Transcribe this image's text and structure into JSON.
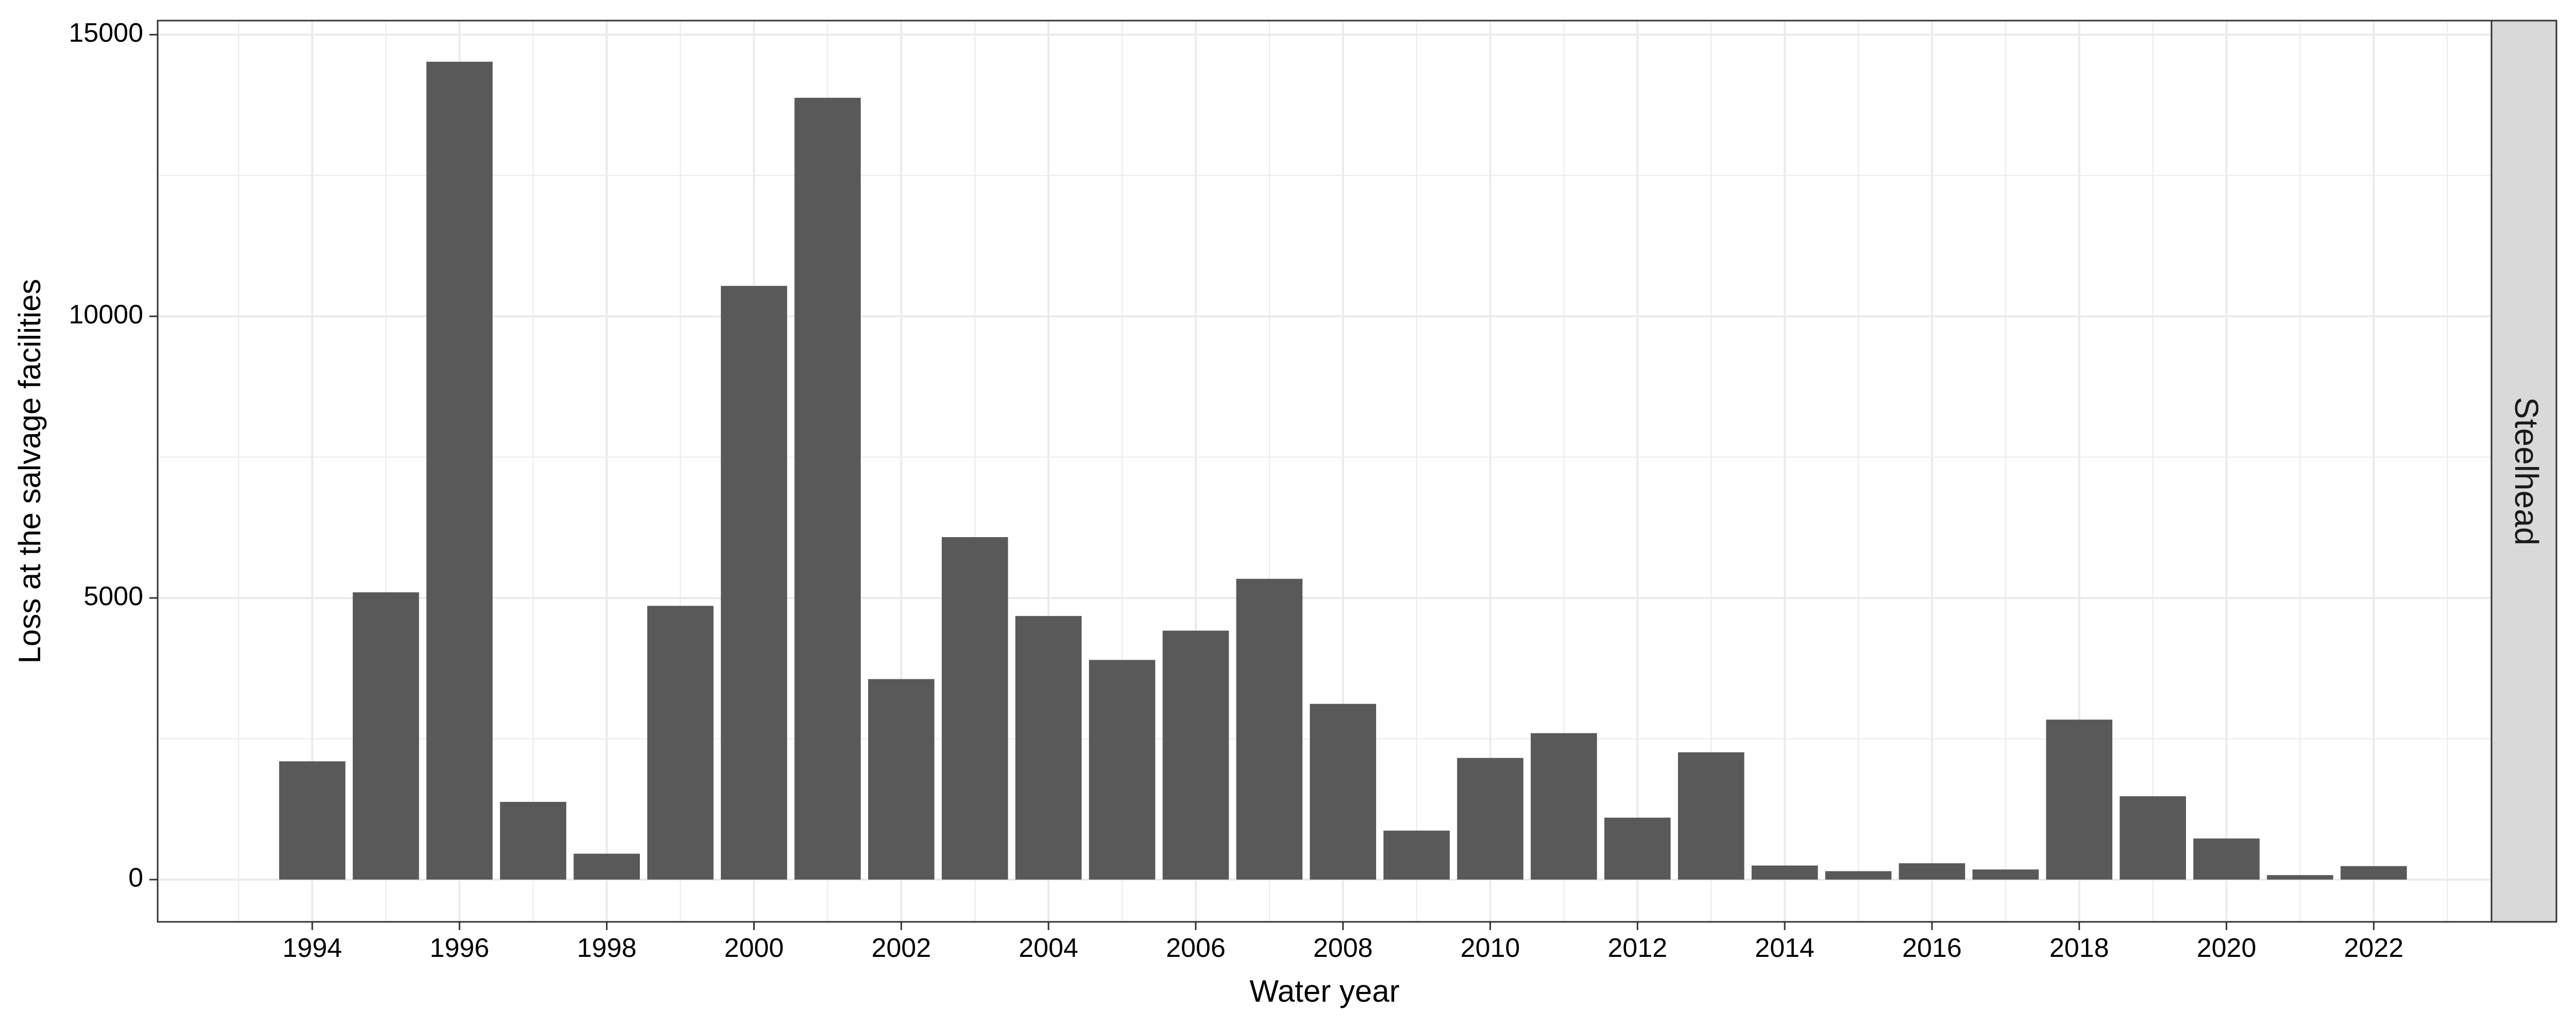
{
  "chart_data": {
    "type": "bar",
    "title": "",
    "xlabel": "Water year",
    "ylabel": "Loss at the salvage facilities",
    "facet_label": "Steelhead",
    "x": [
      1994,
      1995,
      1996,
      1997,
      1998,
      1999,
      2000,
      2001,
      2002,
      2003,
      2004,
      2005,
      2006,
      2007,
      2008,
      2009,
      2010,
      2011,
      2012,
      2013,
      2014,
      2015,
      2016,
      2017,
      2018,
      2019,
      2020,
      2021,
      2022
    ],
    "values": [
      2100,
      5100,
      14520,
      1380,
      460,
      4860,
      10540,
      13880,
      3560,
      6080,
      4680,
      3900,
      4420,
      5340,
      3120,
      870,
      2160,
      2600,
      1100,
      2260,
      250,
      150,
      290,
      180,
      2840,
      1480,
      730,
      80,
      240
    ],
    "x_ticks": [
      "1994",
      "1996",
      "1998",
      "2000",
      "2002",
      "2004",
      "2006",
      "2008",
      "2010",
      "2012",
      "2014",
      "2016",
      "2018",
      "2020",
      "2022"
    ],
    "y_ticks": [
      "0",
      "5000",
      "10000",
      "15000"
    ],
    "xlim": [
      1991.9,
      2023.6
    ],
    "ylim": [
      -750,
      15250
    ],
    "grid": true,
    "bar_color": "#595959",
    "grid_color": "#ebebeb",
    "strip_color": "#d9d9d9"
  }
}
